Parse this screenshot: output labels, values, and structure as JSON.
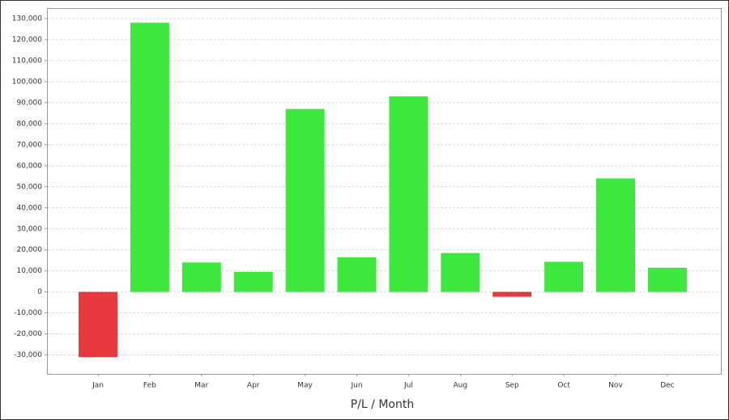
{
  "chart_data": {
    "type": "bar",
    "x_label": "P/L / Month",
    "categories": [
      "Jan",
      "Feb",
      "Mar",
      "Apr",
      "May",
      "Jun",
      "Jul",
      "Aug",
      "Sep",
      "Oct",
      "Nov",
      "Dec"
    ],
    "values": [
      -31000,
      128000,
      14000,
      9500,
      87000,
      16500,
      93000,
      18500,
      -2300,
      14300,
      54000,
      11500
    ],
    "positive_color": "#3de83d",
    "negative_color": "#e8383d",
    "ylim": [
      -39000,
      135000
    ],
    "yticks": [
      {
        "value": -30000,
        "label": "-30,000"
      },
      {
        "value": -20000,
        "label": "-20,000"
      },
      {
        "value": -10000,
        "label": "-10,000"
      },
      0,
      {
        "value": 10000,
        "label": "10,000"
      },
      {
        "value": 20000,
        "label": "20,000"
      },
      {
        "value": 30000,
        "label": "30,000"
      },
      {
        "value": 40000,
        "label": "40,000"
      },
      {
        "value": 50000,
        "label": "50,000"
      },
      {
        "value": 60000,
        "label": "60,000"
      },
      {
        "value": 70000,
        "label": "70,000"
      },
      {
        "value": 80000,
        "label": "80,000"
      },
      {
        "value": 90000,
        "label": "90,000"
      },
      {
        "value": 100000,
        "label": "100,000"
      },
      {
        "value": 110000,
        "label": "110,000"
      },
      {
        "value": 120000,
        "label": "120,000"
      },
      {
        "value": 130000,
        "label": "130,000"
      }
    ],
    "grid": true
  }
}
